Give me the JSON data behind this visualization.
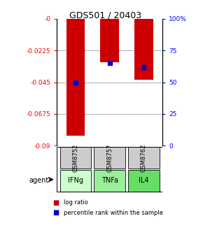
{
  "title": "GDS501 / 20403",
  "samples": [
    "GSM8752",
    "GSM8757",
    "GSM8762"
  ],
  "agents": [
    "IFNg",
    "TNFa",
    "IL4"
  ],
  "log_ratios": [
    -0.083,
    -0.031,
    -0.043
  ],
  "percentile_ranks": [
    50,
    65,
    62
  ],
  "left_ylim": [
    -0.09,
    0
  ],
  "right_ylim": [
    0,
    100
  ],
  "left_yticks": [
    0,
    -0.0225,
    -0.045,
    -0.0675,
    -0.09
  ],
  "left_yticklabels": [
    "-0",
    "-0.0225",
    "-0.045",
    "-0.0675",
    "-0.09"
  ],
  "right_yticks": [
    0,
    25,
    50,
    75,
    100
  ],
  "right_yticklabels": [
    "0",
    "25",
    "50",
    "75",
    "100%"
  ],
  "bar_color": "#cc0000",
  "dot_color": "#0000cc",
  "agent_colors": [
    "#ccffcc",
    "#99ee99",
    "#66dd66"
  ],
  "sample_box_color": "#cccccc",
  "legend_bar_label": "log ratio",
  "legend_dot_label": "percentile rank within the sample",
  "agent_label": "agent",
  "bar_width": 0.55
}
